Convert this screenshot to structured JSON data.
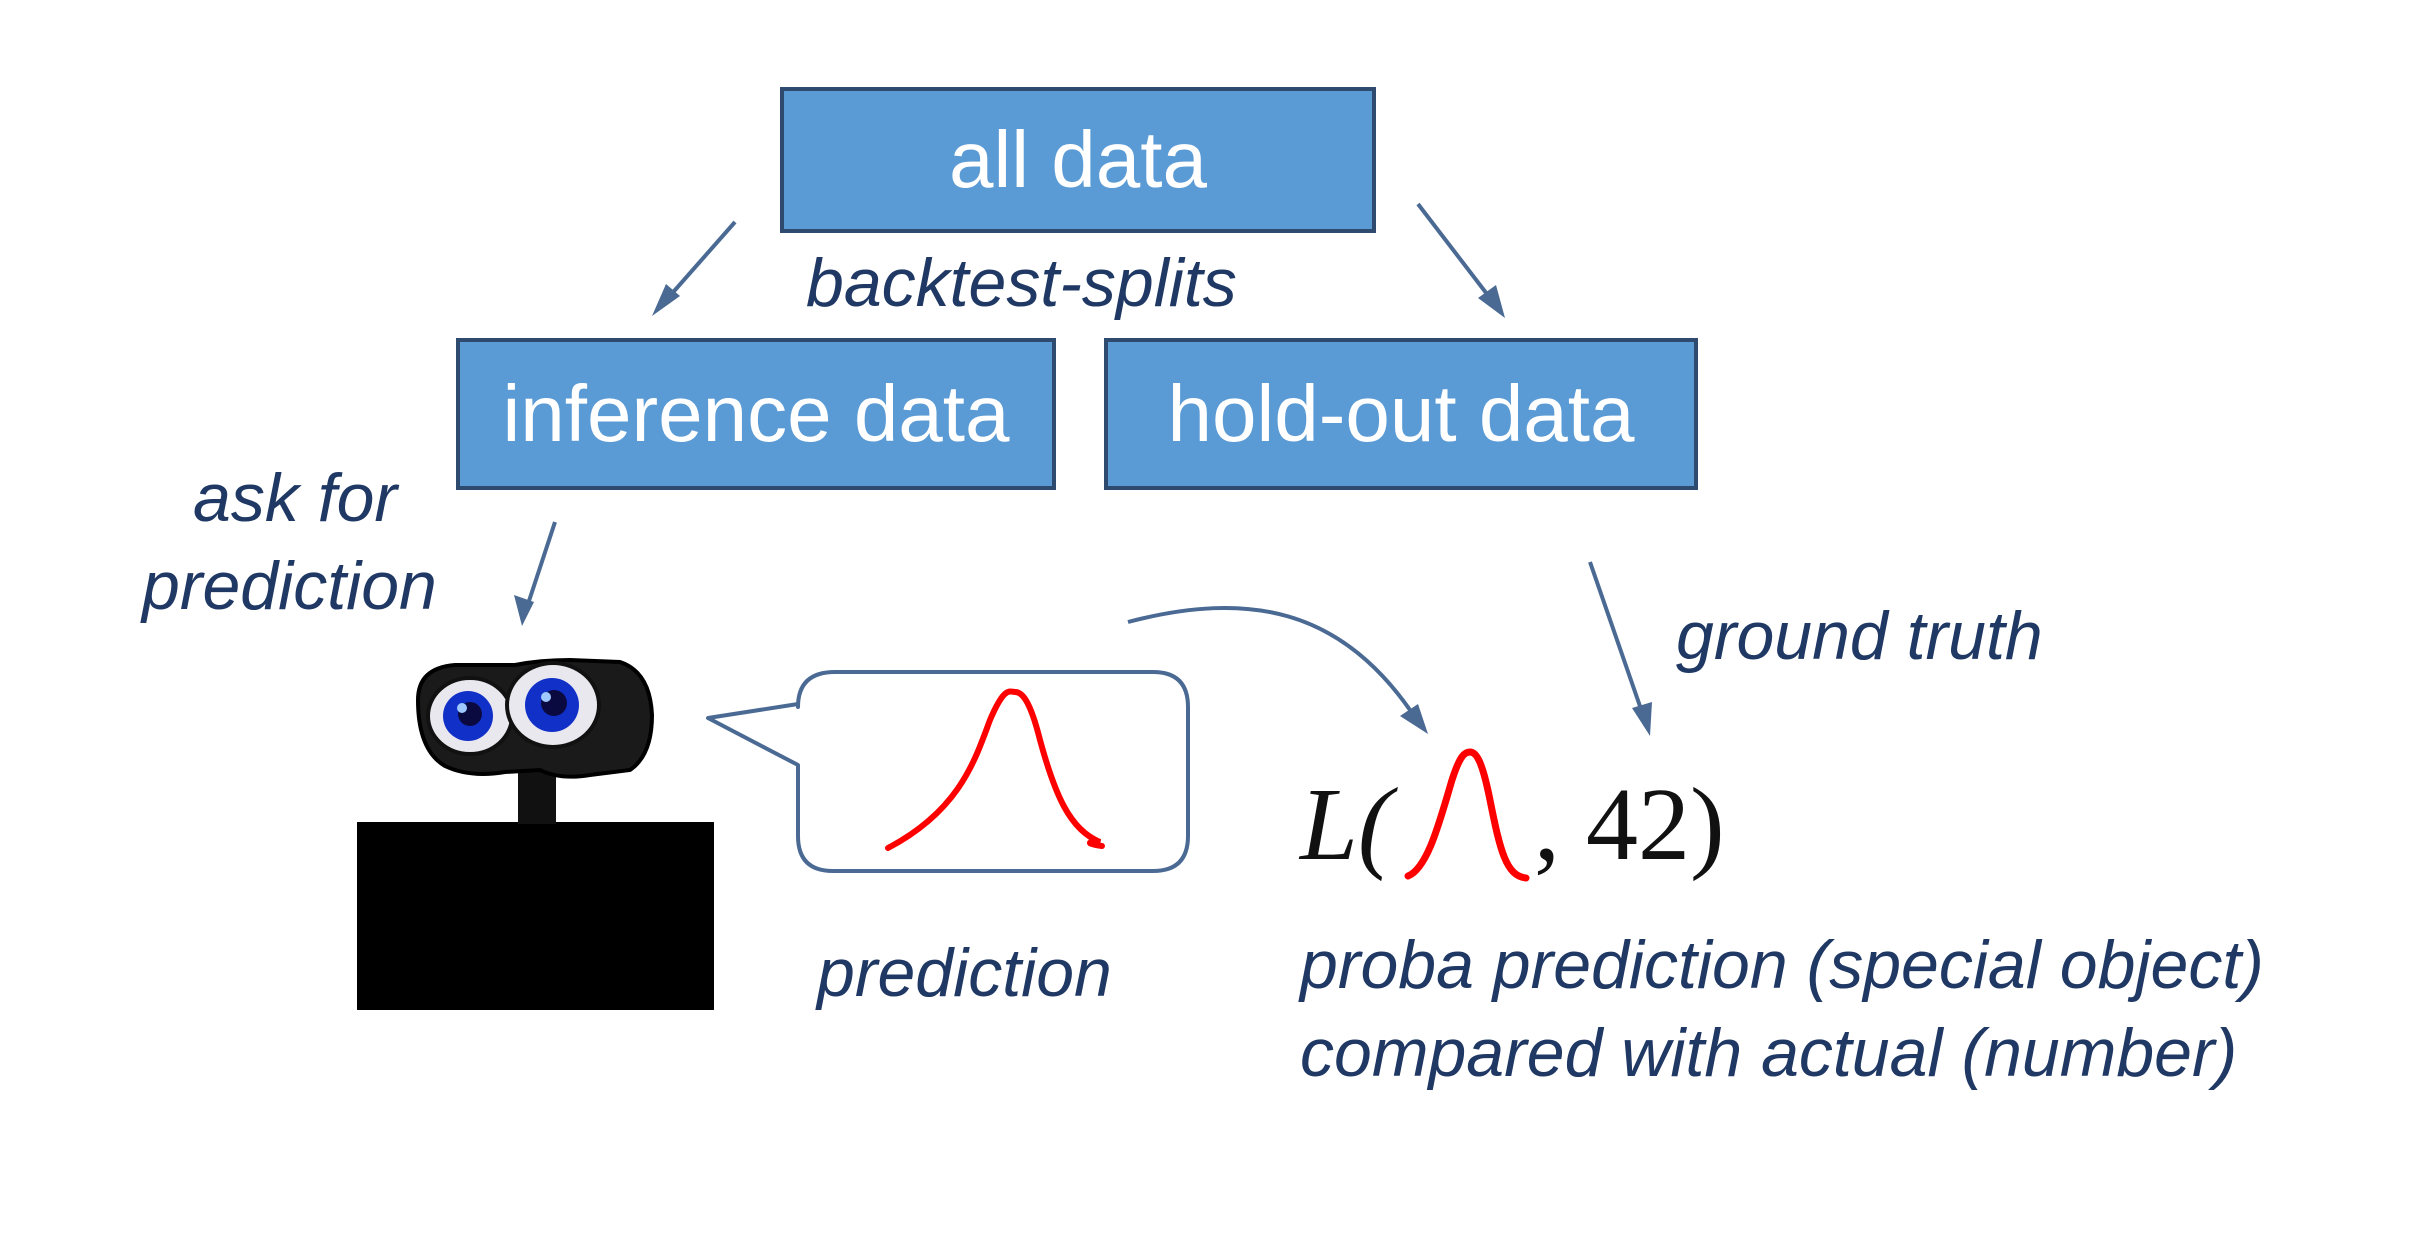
{
  "nodes": {
    "all_data": "all data",
    "inference_data": "inference data",
    "holdout_data": "hold-out data"
  },
  "labels": {
    "backtest_splits": "backtest-splits",
    "ask_for_prediction_line1": "ask for",
    "ask_for_prediction_line2": "prediction",
    "ground_truth": "ground truth",
    "prediction": "prediction",
    "caption_line1": "proba prediction (special object)",
    "caption_line2": "compared with actual (number)"
  },
  "formula": {
    "prefix": "L(",
    "actual_value": ", 42)"
  },
  "colors": {
    "box_fill": "#5b9bd5",
    "box_border": "#2e4a6e",
    "label_text": "#1f3864",
    "arrow": "#4a6a94",
    "distribution_curve": "#ff0000",
    "bubble_border": "#4a6a94"
  }
}
